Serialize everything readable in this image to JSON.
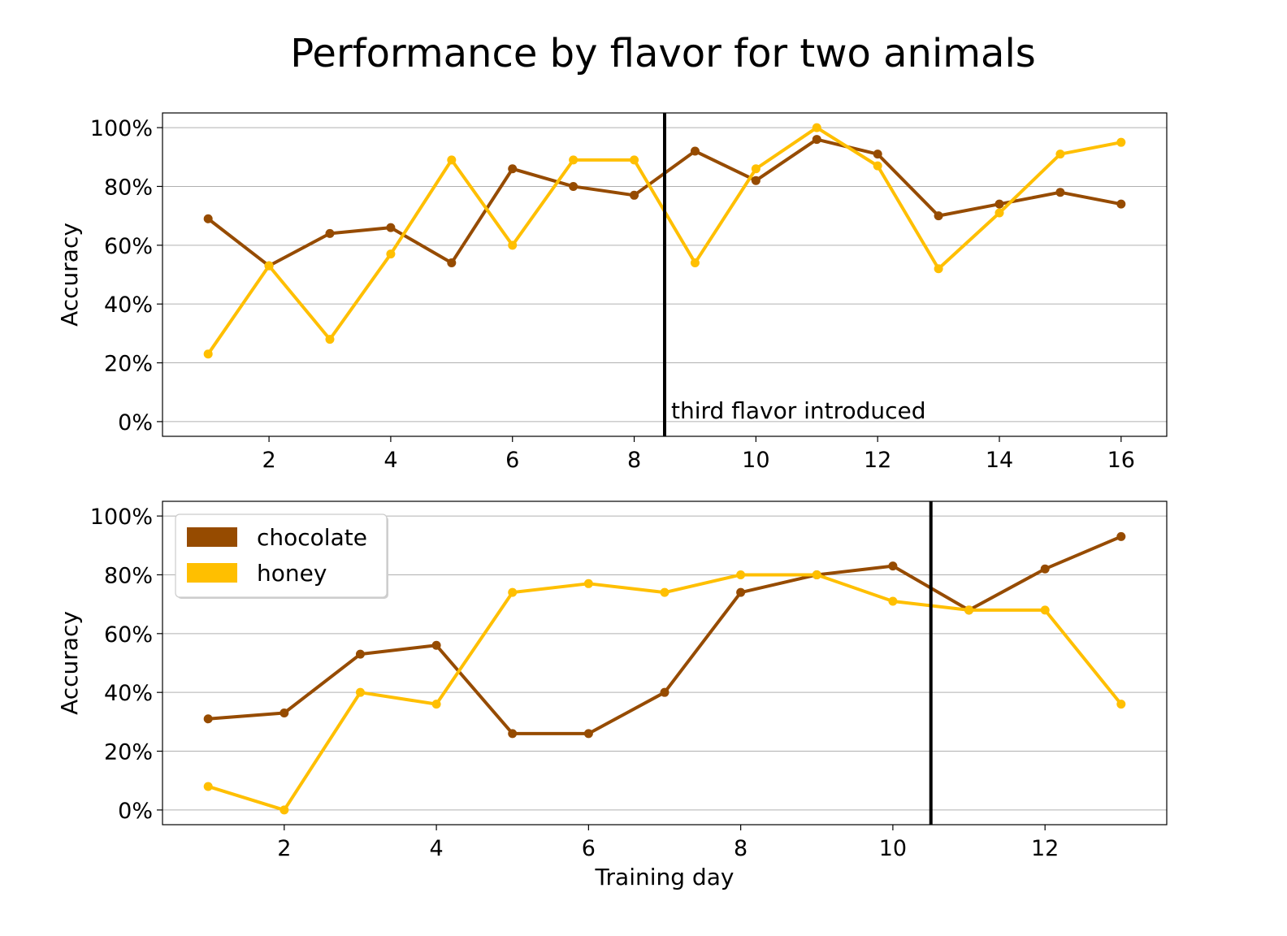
{
  "figure": {
    "title": "Performance by flavor for two animals"
  },
  "colors": {
    "chocolate": "#964B00",
    "honey": "#FFBF00"
  },
  "chart_data": [
    {
      "type": "line",
      "title": "",
      "xlabel": "",
      "ylabel": "Accuracy",
      "xlim": [
        0.25,
        16.75
      ],
      "ylim": [
        -5,
        105
      ],
      "xticks": [
        2,
        4,
        6,
        8,
        10,
        12,
        14,
        16
      ],
      "yticks": [
        0,
        20,
        40,
        60,
        80,
        100
      ],
      "ytick_labels": [
        "0%",
        "20%",
        "40%",
        "60%",
        "80%",
        "100%"
      ],
      "grid": "y",
      "x": [
        1,
        2,
        3,
        4,
        5,
        6,
        7,
        8,
        9,
        10,
        11,
        12,
        13,
        14,
        15,
        16
      ],
      "series": [
        {
          "name": "chocolate",
          "color": "#964B00",
          "values": [
            69,
            53,
            64,
            66,
            54,
            86,
            80,
            77,
            92,
            82,
            96,
            91,
            70,
            74,
            78,
            74
          ]
        },
        {
          "name": "honey",
          "color": "#FFBF00",
          "values": [
            23,
            53,
            28,
            57,
            89,
            60,
            89,
            89,
            54,
            86,
            100,
            87,
            52,
            71,
            91,
            95
          ]
        }
      ],
      "vline": {
        "x": 8.5,
        "label": "third flavor introduced"
      }
    },
    {
      "type": "line",
      "title": "",
      "xlabel": "Training day",
      "ylabel": "Accuracy",
      "xlim": [
        0.4,
        13.6
      ],
      "ylim": [
        -5,
        105
      ],
      "xticks": [
        2,
        4,
        6,
        8,
        10,
        12
      ],
      "yticks": [
        0,
        20,
        40,
        60,
        80,
        100
      ],
      "ytick_labels": [
        "0%",
        "20%",
        "40%",
        "60%",
        "80%",
        "100%"
      ],
      "grid": "y",
      "legend": "upper-left",
      "x": [
        1,
        2,
        3,
        4,
        5,
        6,
        7,
        8,
        9,
        10,
        11,
        12,
        13
      ],
      "series": [
        {
          "name": "chocolate",
          "color": "#964B00",
          "values": [
            31,
            33,
            53,
            56,
            26,
            26,
            40,
            74,
            80,
            83,
            68,
            82,
            93
          ]
        },
        {
          "name": "honey",
          "color": "#FFBF00",
          "values": [
            8,
            0,
            40,
            36,
            74,
            77,
            74,
            80,
            80,
            71,
            68,
            68,
            36
          ]
        }
      ],
      "vline": {
        "x": 10.5,
        "label": ""
      }
    }
  ]
}
